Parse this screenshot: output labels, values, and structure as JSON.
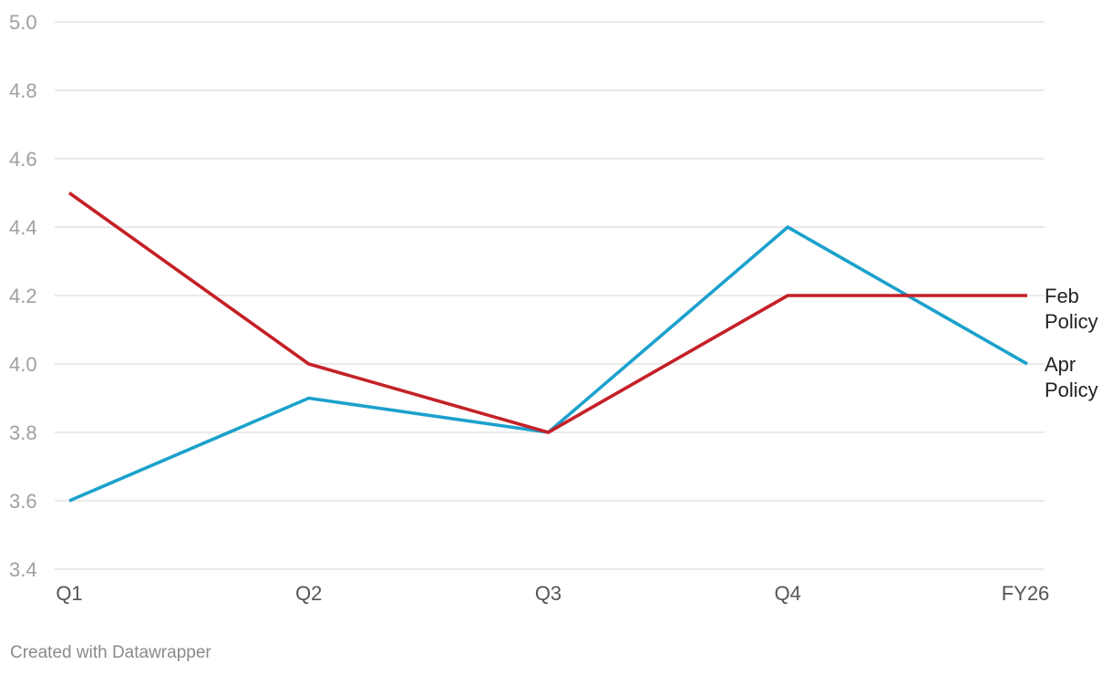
{
  "chart_data": {
    "type": "line",
    "title": "",
    "xlabel": "",
    "ylabel": "",
    "categories": [
      "Q1",
      "Q2",
      "Q3",
      "Q4",
      "FY26"
    ],
    "ylim": [
      3.4,
      5.0
    ],
    "yticks": [
      "3.4",
      "3.6",
      "3.8",
      "4.0",
      "4.2",
      "4.4",
      "4.6",
      "4.8",
      "5.0"
    ],
    "grid": true,
    "legend": "direct-labels-right",
    "series": [
      {
        "name": "Feb Policy",
        "label_lines": [
          "Feb",
          "Policy"
        ],
        "color": "#c42127",
        "values": [
          4.5,
          4.0,
          3.8,
          4.2,
          4.2
        ]
      },
      {
        "name": "Apr Policy",
        "label_lines": [
          "Apr",
          "Policy"
        ],
        "color": "#1ba1cc",
        "values": [
          3.6,
          3.9,
          3.8,
          4.4,
          4.0
        ]
      }
    ]
  },
  "footer": {
    "credit": "Created with Datawrapper"
  }
}
